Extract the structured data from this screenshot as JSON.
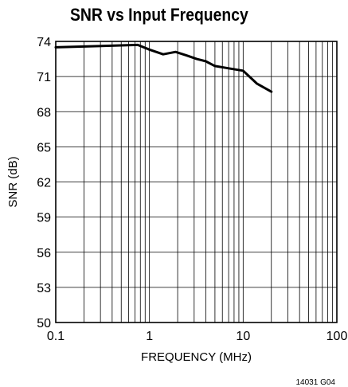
{
  "chart_data": {
    "type": "line",
    "title": "SNR vs Input Frequency",
    "xlabel": "FREQUENCY (MHz)",
    "ylabel": "SNR (dB)",
    "x_scale": "log",
    "xlim": [
      0.1,
      100
    ],
    "ylim": [
      50,
      74
    ],
    "x_ticks": [
      "0.1",
      "1",
      "10",
      "100"
    ],
    "y_ticks": [
      "74",
      "71",
      "68",
      "65",
      "62",
      "59",
      "56",
      "53",
      "50"
    ],
    "grid": true,
    "series": [
      {
        "x": [
          0.1,
          0.75,
          1.0,
          1.4,
          1.9,
          2.5,
          3.2,
          4.0,
          5.0,
          7.0,
          10.0,
          14.0,
          20.0
        ],
        "y": [
          73.5,
          73.7,
          73.3,
          72.9,
          73.1,
          72.8,
          72.5,
          72.3,
          71.9,
          71.7,
          71.5,
          70.4,
          69.7
        ],
        "color": "#000000"
      }
    ],
    "figure_code": "14031 G04"
  }
}
